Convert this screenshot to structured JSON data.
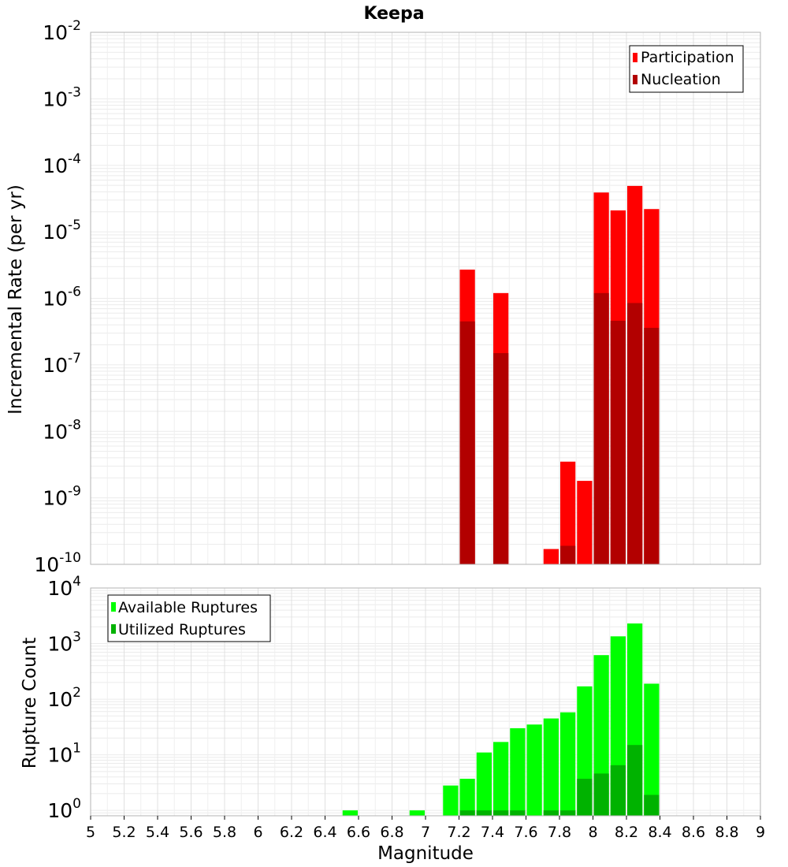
{
  "chart_data": [
    {
      "type": "bar",
      "title": "Keepa",
      "ylabel": "Incremental Rate (per yr)",
      "yscale": "log",
      "ylim": [
        1e-10,
        0.01
      ],
      "y_ticks": [
        {
          "base": "10",
          "exp": "-10"
        },
        {
          "base": "10",
          "exp": "-9"
        },
        {
          "base": "10",
          "exp": "-8"
        },
        {
          "base": "10",
          "exp": "-7"
        },
        {
          "base": "10",
          "exp": "-6"
        },
        {
          "base": "10",
          "exp": "-5"
        },
        {
          "base": "10",
          "exp": "-4"
        },
        {
          "base": "10",
          "exp": "-3"
        },
        {
          "base": "10",
          "exp": "-2"
        }
      ],
      "legend": {
        "position": "top-right"
      },
      "series": [
        {
          "name": "Participation",
          "color": "#ff0000",
          "points": [
            [
              7.25,
              2.7e-06
            ],
            [
              7.45,
              1.2e-06
            ],
            [
              7.75,
              1.7e-10
            ],
            [
              7.85,
              3.5e-09
            ],
            [
              7.95,
              1.8e-09
            ],
            [
              8.05,
              3.9e-05
            ],
            [
              8.15,
              2.1e-05
            ],
            [
              8.25,
              4.9e-05
            ],
            [
              8.35,
              2.2e-05
            ]
          ]
        },
        {
          "name": "Nucleation",
          "color": "#b20000",
          "points": [
            [
              7.25,
              4.5e-07
            ],
            [
              7.45,
              1.5e-07
            ],
            [
              7.85,
              1.9e-10
            ],
            [
              8.05,
              1.2e-06
            ],
            [
              8.15,
              4.6e-07
            ],
            [
              8.25,
              8.5e-07
            ],
            [
              8.35,
              3.6e-07
            ]
          ]
        }
      ]
    },
    {
      "type": "bar",
      "xlabel": "Magnitude",
      "ylabel": "Rupture Count",
      "xlim": [
        5,
        9
      ],
      "x_ticks": [
        "5",
        "5.2",
        "5.4",
        "5.6",
        "5.8",
        "6",
        "6.2",
        "6.4",
        "6.6",
        "6.8",
        "7",
        "7.2",
        "7.4",
        "7.6",
        "7.8",
        "8",
        "8.2",
        "8.4",
        "8.6",
        "8.8",
        "9"
      ],
      "yscale": "log",
      "ylim": [
        0.8,
        10000
      ],
      "y_ticks": [
        {
          "base": "10",
          "exp": "0"
        },
        {
          "base": "10",
          "exp": "1"
        },
        {
          "base": "10",
          "exp": "2"
        },
        {
          "base": "10",
          "exp": "3"
        },
        {
          "base": "10",
          "exp": "4"
        }
      ],
      "legend": {
        "position": "top-left"
      },
      "series": [
        {
          "name": "Available Ruptures",
          "color": "#00ff00",
          "points": [
            [
              6.55,
              1
            ],
            [
              6.95,
              1
            ],
            [
              7.15,
              2.8
            ],
            [
              7.25,
              3.7
            ],
            [
              7.35,
              11
            ],
            [
              7.45,
              17
            ],
            [
              7.55,
              30
            ],
            [
              7.65,
              35
            ],
            [
              7.75,
              45
            ],
            [
              7.85,
              58
            ],
            [
              7.95,
              170
            ],
            [
              8.05,
              620
            ],
            [
              8.15,
              1350
            ],
            [
              8.25,
              2300
            ],
            [
              8.35,
              190
            ]
          ]
        },
        {
          "name": "Utilized Ruptures",
          "color": "#00b200",
          "points": [
            [
              7.25,
              1
            ],
            [
              7.35,
              1
            ],
            [
              7.45,
              1
            ],
            [
              7.55,
              1
            ],
            [
              7.75,
              1
            ],
            [
              7.85,
              1
            ],
            [
              7.95,
              3.7
            ],
            [
              8.05,
              4.6
            ],
            [
              8.15,
              6.5
            ],
            [
              8.25,
              15
            ],
            [
              8.35,
              1.9
            ]
          ]
        }
      ]
    }
  ]
}
